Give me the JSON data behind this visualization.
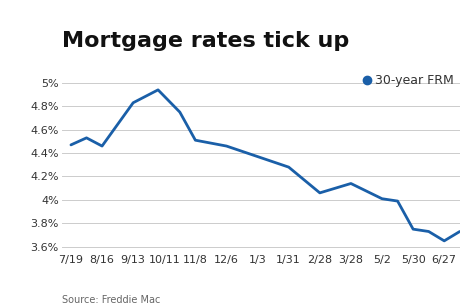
{
  "title": "Mortgage rates tick up",
  "legend_label": "30-year FRM",
  "source_text": "Source: Freddie Mac",
  "line_color": "#1a5fa8",
  "legend_dot_color": "#1a5fa8",
  "background_color": "#ffffff",
  "grid_color": "#cccccc",
  "x_labels": [
    "7/19",
    "8/16",
    "9/13",
    "10/11",
    "11/8",
    "12/6",
    "1/3",
    "1/31",
    "2/28",
    "3/28",
    "5/2",
    "5/30",
    "6/27"
  ],
  "y_values": [
    4.47,
    4.53,
    4.46,
    4.83,
    4.94,
    4.75,
    4.51,
    4.46,
    4.37,
    4.28,
    4.06,
    4.14,
    4.01,
    3.99,
    3.75,
    3.73,
    3.65,
    3.73
  ],
  "x_indices": [
    0,
    0.5,
    1,
    2,
    2.8,
    3.5,
    4,
    5,
    6,
    7,
    8,
    9,
    10,
    10.5,
    11,
    11.5,
    12,
    12.5
  ],
  "ylim": [
    3.55,
    5.05
  ],
  "yticks": [
    3.6,
    3.8,
    4.0,
    4.2,
    4.4,
    4.6,
    4.8,
    5.0
  ],
  "ytick_labels": [
    "3.6%",
    "3.8%",
    "4%",
    "4.2%",
    "4.4%",
    "4.6%",
    "4.8%",
    "5%"
  ],
  "title_fontsize": 16,
  "axis_fontsize": 8,
  "legend_fontsize": 9,
  "line_width": 2.0
}
